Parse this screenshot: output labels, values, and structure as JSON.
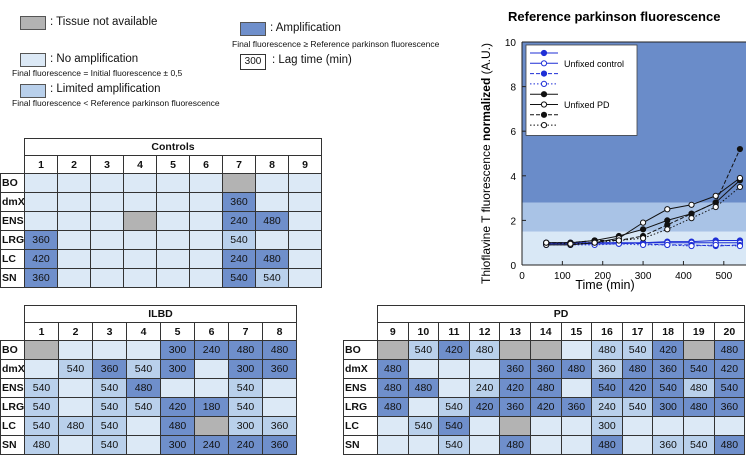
{
  "legend": {
    "items": [
      {
        "label": ": Tissue not available",
        "color": "#b3b3b3"
      },
      {
        "label": ": No amplification",
        "note": "Final fluorescence = Initial fluorescence ± 0,5",
        "color": "#dce9f6"
      },
      {
        "label": ": Limited amplification",
        "note": "Final fluorescence < Reference parkinson fluorescence",
        "color": "#b9d0eb"
      },
      {
        "label": ": Amplification",
        "note": "Final fluorescence ≥ Reference parkinson fluorescence",
        "color": "#6f8fcb"
      }
    ],
    "lag": {
      "sample": 300,
      "label": ": Lag time (min)"
    }
  },
  "tables": [
    {
      "title": "Controls",
      "columns": [
        1,
        2,
        3,
        4,
        5,
        6,
        7,
        8,
        9
      ],
      "rows": [
        {
          "label": "BO",
          "cells": [
            {
              "state": 1
            },
            {
              "state": 1
            },
            {
              "state": 1
            },
            {
              "state": 1
            },
            {
              "state": 1
            },
            {
              "state": 1
            },
            {
              "state": 0
            },
            {
              "state": 1
            },
            {
              "state": 1
            }
          ]
        },
        {
          "label": "dmX",
          "cells": [
            {
              "state": 1
            },
            {
              "state": 1
            },
            {
              "state": 1
            },
            {
              "state": 1
            },
            {
              "state": 1
            },
            {
              "state": 1
            },
            {
              "state": 3,
              "lag": 360
            },
            {
              "state": 1
            },
            {
              "state": 1
            }
          ]
        },
        {
          "label": "ENS",
          "cells": [
            {
              "state": 1
            },
            {
              "state": 1
            },
            {
              "state": 1
            },
            {
              "state": 0
            },
            {
              "state": 1
            },
            {
              "state": 1
            },
            {
              "state": 3,
              "lag": 240
            },
            {
              "state": 3,
              "lag": 480
            },
            {
              "state": 1
            }
          ]
        },
        {
          "label": "LRG",
          "cells": [
            {
              "state": 3,
              "lag": 360
            },
            {
              "state": 1
            },
            {
              "state": 1
            },
            {
              "state": 1
            },
            {
              "state": 1
            },
            {
              "state": 1
            },
            {
              "state": 2,
              "lag": 540
            },
            {
              "state": 1
            },
            {
              "state": 1
            }
          ]
        },
        {
          "label": "LC",
          "cells": [
            {
              "state": 3,
              "lag": 420
            },
            {
              "state": 1
            },
            {
              "state": 1
            },
            {
              "state": 1
            },
            {
              "state": 1
            },
            {
              "state": 1
            },
            {
              "state": 3,
              "lag": 240
            },
            {
              "state": 3,
              "lag": 480
            },
            {
              "state": 1
            }
          ]
        },
        {
          "label": "SN",
          "cells": [
            {
              "state": 3,
              "lag": 360
            },
            {
              "state": 1
            },
            {
              "state": 1
            },
            {
              "state": 1
            },
            {
              "state": 1
            },
            {
              "state": 1
            },
            {
              "state": 3,
              "lag": 540
            },
            {
              "state": 2,
              "lag": 540
            },
            {
              "state": 1
            }
          ]
        }
      ]
    },
    {
      "title": "ILBD",
      "columns": [
        1,
        2,
        3,
        4,
        5,
        6,
        7,
        8
      ],
      "rows": [
        {
          "label": "BO",
          "cells": [
            {
              "state": 0
            },
            {
              "state": 1
            },
            {
              "state": 1
            },
            {
              "state": 1
            },
            {
              "state": 3,
              "lag": 300
            },
            {
              "state": 3,
              "lag": 240
            },
            {
              "state": 3,
              "lag": 480
            },
            {
              "state": 3,
              "lag": 480
            }
          ]
        },
        {
          "label": "dmX",
          "cells": [
            {
              "state": 1
            },
            {
              "state": 2,
              "lag": 540
            },
            {
              "state": 3,
              "lag": 360
            },
            {
              "state": 2,
              "lag": 540
            },
            {
              "state": 3,
              "lag": 300
            },
            {
              "state": 1
            },
            {
              "state": 3,
              "lag": 300
            },
            {
              "state": 3,
              "lag": 360
            }
          ]
        },
        {
          "label": "ENS",
          "cells": [
            {
              "state": 2,
              "lag": 540
            },
            {
              "state": 1
            },
            {
              "state": 2,
              "lag": 540
            },
            {
              "state": 3,
              "lag": 480
            },
            {
              "state": 1
            },
            {
              "state": 1
            },
            {
              "state": 2,
              "lag": 540
            },
            {
              "state": 1
            }
          ]
        },
        {
          "label": "LRG",
          "cells": [
            {
              "state": 2,
              "lag": 540
            },
            {
              "state": 1
            },
            {
              "state": 2,
              "lag": 540
            },
            {
              "state": 2,
              "lag": 540
            },
            {
              "state": 3,
              "lag": 420
            },
            {
              "state": 3,
              "lag": 180
            },
            {
              "state": 2,
              "lag": 540
            },
            {
              "state": 1
            }
          ]
        },
        {
          "label": "LC",
          "cells": [
            {
              "state": 2,
              "lag": 540
            },
            {
              "state": 2,
              "lag": 480
            },
            {
              "state": 2,
              "lag": 540
            },
            {
              "state": 1
            },
            {
              "state": 3,
              "lag": 480
            },
            {
              "state": 0
            },
            {
              "state": 2,
              "lag": 300
            },
            {
              "state": 2,
              "lag": 360
            }
          ]
        },
        {
          "label": "SN",
          "cells": [
            {
              "state": 2,
              "lag": 480
            },
            {
              "state": 1
            },
            {
              "state": 2,
              "lag": 540
            },
            {
              "state": 1
            },
            {
              "state": 3,
              "lag": 300
            },
            {
              "state": 3,
              "lag": 240
            },
            {
              "state": 3,
              "lag": 240
            },
            {
              "state": 3,
              "lag": 360
            }
          ]
        }
      ]
    },
    {
      "title": "PD",
      "columns": [
        9,
        10,
        11,
        12,
        13,
        14,
        15,
        16,
        17,
        18,
        19,
        20
      ],
      "rows": [
        {
          "label": "BO",
          "cells": [
            {
              "state": 0
            },
            {
              "state": 2,
              "lag": 540
            },
            {
              "state": 3,
              "lag": 420
            },
            {
              "state": 2,
              "lag": 480
            },
            {
              "state": 0
            },
            {
              "state": 0
            },
            {
              "state": 1
            },
            {
              "state": 2,
              "lag": 480
            },
            {
              "state": 2,
              "lag": 540
            },
            {
              "state": 3,
              "lag": 420
            },
            {
              "state": 0
            },
            {
              "state": 3,
              "lag": 480
            }
          ]
        },
        {
          "label": "dmX",
          "cells": [
            {
              "state": 3,
              "lag": 480
            },
            {
              "state": 1
            },
            {
              "state": 1
            },
            {
              "state": 1
            },
            {
              "state": 3,
              "lag": 360
            },
            {
              "state": 3,
              "lag": 360
            },
            {
              "state": 3,
              "lag": 480
            },
            {
              "state": 2,
              "lag": 360
            },
            {
              "state": 3,
              "lag": 480
            },
            {
              "state": 3,
              "lag": 360
            },
            {
              "state": 3,
              "lag": 540
            },
            {
              "state": 3,
              "lag": 420
            }
          ]
        },
        {
          "label": "ENS",
          "cells": [
            {
              "state": 3,
              "lag": 480
            },
            {
              "state": 3,
              "lag": 480
            },
            {
              "state": 1
            },
            {
              "state": 2,
              "lag": 240
            },
            {
              "state": 3,
              "lag": 420
            },
            {
              "state": 3,
              "lag": 480
            },
            {
              "state": 1
            },
            {
              "state": 3,
              "lag": 540
            },
            {
              "state": 3,
              "lag": 420
            },
            {
              "state": 3,
              "lag": 540
            },
            {
              "state": 2,
              "lag": 480
            },
            {
              "state": 3,
              "lag": 540
            }
          ]
        },
        {
          "label": "LRG",
          "cells": [
            {
              "state": 3,
              "lag": 480
            },
            {
              "state": 1
            },
            {
              "state": 2,
              "lag": 540
            },
            {
              "state": 3,
              "lag": 420
            },
            {
              "state": 3,
              "lag": 360
            },
            {
              "state": 3,
              "lag": 420
            },
            {
              "state": 3,
              "lag": 360
            },
            {
              "state": 2,
              "lag": 240
            },
            {
              "state": 2,
              "lag": 540
            },
            {
              "state": 3,
              "lag": 300
            },
            {
              "state": 3,
              "lag": 480
            },
            {
              "state": 3,
              "lag": 360
            }
          ]
        },
        {
          "label": "LC",
          "cells": [
            {
              "state": 1
            },
            {
              "state": 2,
              "lag": 540
            },
            {
              "state": 3,
              "lag": 540
            },
            {
              "state": 1
            },
            {
              "state": 0
            },
            {
              "state": 1
            },
            {
              "state": 1
            },
            {
              "state": 2,
              "lag": 300
            },
            {
              "state": 1
            },
            {
              "state": 1
            },
            {
              "state": 1
            },
            {
              "state": 1
            }
          ]
        },
        {
          "label": "SN",
          "cells": [
            {
              "state": 1
            },
            {
              "state": 1
            },
            {
              "state": 2,
              "lag": 540
            },
            {
              "state": 1
            },
            {
              "state": 3,
              "lag": 480
            },
            {
              "state": 1
            },
            {
              "state": 1
            },
            {
              "state": 3,
              "lag": 480
            },
            {
              "state": 1
            },
            {
              "state": 2,
              "lag": 360
            },
            {
              "state": 2,
              "lag": 540
            },
            {
              "state": 3,
              "lag": 480
            }
          ]
        }
      ]
    }
  ],
  "chart_data": {
    "type": "line",
    "title": "Reference parkinson fluorescence",
    "y_label_parts": [
      "Thioflavine T fluorescence ",
      "normalized",
      " (A.U.)"
    ],
    "x_label": "Time (min)",
    "xlim": [
      0,
      555
    ],
    "xticks": [
      0,
      100,
      200,
      300,
      400,
      500
    ],
    "ylim": [
      0,
      10
    ],
    "yticks": [
      0,
      2,
      4,
      6,
      8,
      10
    ],
    "bands": [
      {
        "from": 0,
        "to": 1.5,
        "color": "#d9e8f6"
      },
      {
        "from": 1.5,
        "to": 2.8,
        "color": "#a9c3e6"
      },
      {
        "from": 2.8,
        "to": 10,
        "color": "#6a8cc9"
      }
    ],
    "x": [
      60,
      120,
      180,
      240,
      300,
      360,
      420,
      480,
      540
    ],
    "series": [
      {
        "name": null,
        "color": "#1f2fd6",
        "dash": "solid",
        "marker": "filled",
        "values": [
          1.0,
          1.0,
          1.0,
          1.0,
          1.0,
          1.05,
          1.05,
          1.1,
          1.1
        ]
      },
      {
        "name": "Unfixed control",
        "color": "#1f2fd6",
        "dash": "solid",
        "marker": "open",
        "values": [
          0.95,
          0.95,
          0.95,
          0.95,
          1.0,
          1.0,
          1.0,
          1.0,
          1.0
        ]
      },
      {
        "name": null,
        "color": "#1f2fd6",
        "dash": "dashed",
        "marker": "filled",
        "values": [
          1.0,
          1.0,
          1.0,
          1.0,
          0.95,
          0.9,
          0.9,
          0.85,
          0.9
        ]
      },
      {
        "name": null,
        "color": "#1f2fd6",
        "dash": "dotted",
        "marker": "open",
        "values": [
          0.9,
          0.9,
          0.9,
          0.95,
          0.9,
          0.9,
          0.85,
          0.9,
          0.85
        ]
      },
      {
        "name": null,
        "color": "#111111",
        "dash": "solid",
        "marker": "filled",
        "values": [
          1.0,
          1.0,
          1.1,
          1.3,
          1.6,
          2.0,
          2.3,
          2.8,
          3.8
        ]
      },
      {
        "name": "Unfixed PD",
        "color": "#111111",
        "dash": "solid",
        "marker": "open",
        "values": [
          0.9,
          0.9,
          1.0,
          1.2,
          1.9,
          2.5,
          2.7,
          3.1,
          3.9
        ]
      },
      {
        "name": null,
        "color": "#111111",
        "dash": "dashed",
        "marker": "filled",
        "values": [
          1.0,
          1.0,
          1.1,
          1.1,
          1.3,
          1.8,
          2.3,
          2.8,
          5.2
        ]
      },
      {
        "name": null,
        "color": "#111111",
        "dash": "dotted",
        "marker": "open",
        "values": [
          1.0,
          0.95,
          1.0,
          1.1,
          1.2,
          1.6,
          2.1,
          2.6,
          3.5
        ]
      }
    ]
  }
}
